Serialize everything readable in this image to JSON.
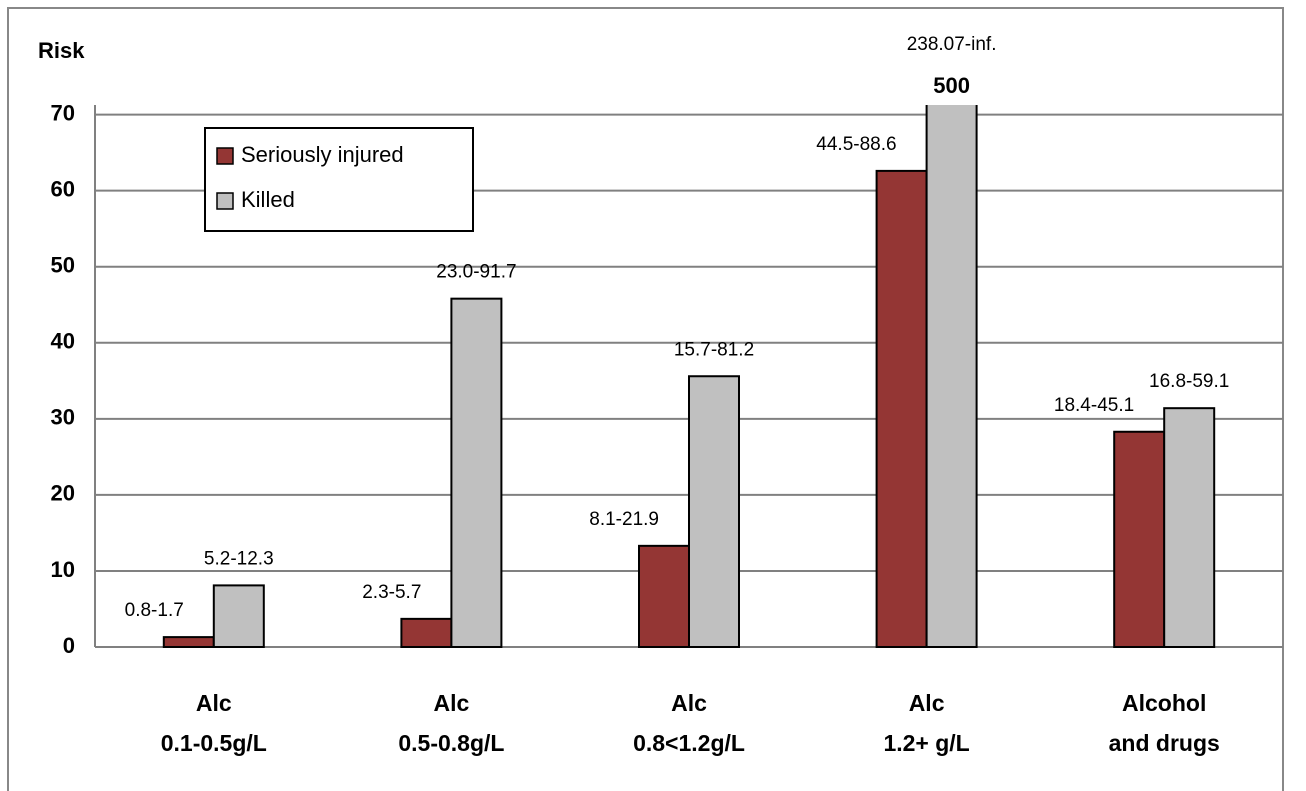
{
  "chart_data": {
    "type": "bar",
    "y_label": "Risk",
    "categories": [
      [
        "Alc",
        "0.1-0.5g/L"
      ],
      [
        "Alc",
        "0.5-0.8g/L"
      ],
      [
        "Alc",
        "0.8<1.2g/L"
      ],
      [
        "Alc",
        "1.2+ g/L"
      ],
      [
        "Alcohol",
        "and drugs"
      ]
    ],
    "series": [
      {
        "name": "Seriously injured",
        "color": "#943634",
        "values": [
          1.3,
          3.7,
          13.3,
          62.6,
          28.3
        ],
        "intervals": [
          "0.8-1.7",
          "2.3-5.7",
          "8.1-21.9",
          "44.5-88.6",
          "18.4-45.1"
        ]
      },
      {
        "name": "Killed",
        "color": "#c0c0c0",
        "values": [
          8.1,
          45.8,
          35.6,
          500,
          31.4
        ],
        "value_labels": [
          null,
          null,
          null,
          "500",
          null
        ],
        "intervals": [
          "5.2-12.3",
          "23.0-91.7",
          "15.7-81.2",
          "238.07-inf.",
          "16.8-59.1"
        ]
      }
    ],
    "ylim": [
      0,
      71
    ],
    "yticks": [
      0,
      10,
      20,
      30,
      40,
      50,
      60,
      70
    ],
    "grid": true,
    "legend": "upper left"
  }
}
